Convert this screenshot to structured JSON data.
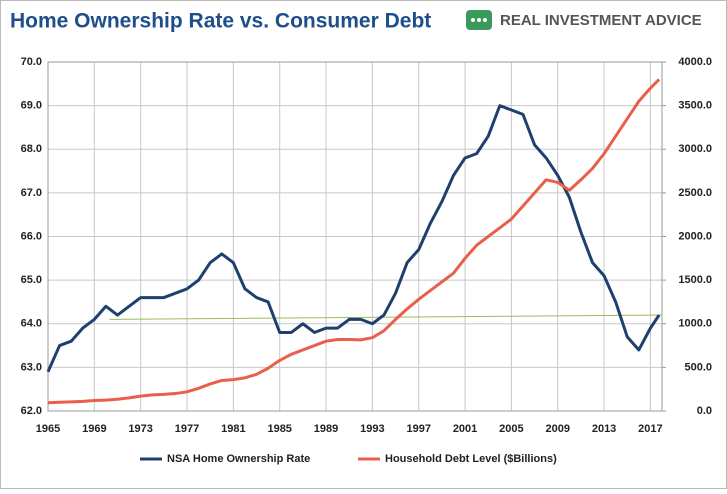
{
  "brand": "REAL INVESTMENT ADVICE",
  "chart_data": {
    "type": "line",
    "title": "Home Ownership Rate vs. Consumer Debt",
    "x": [
      1965,
      1966,
      1967,
      1968,
      1969,
      1970,
      1971,
      1972,
      1973,
      1974,
      1975,
      1976,
      1977,
      1978,
      1979,
      1980,
      1981,
      1982,
      1983,
      1984,
      1985,
      1986,
      1987,
      1988,
      1989,
      1990,
      1991,
      1992,
      1993,
      1994,
      1995,
      1996,
      1997,
      1998,
      1999,
      2000,
      2001,
      2002,
      2003,
      2004,
      2005,
      2006,
      2007,
      2008,
      2009,
      2010,
      2011,
      2012,
      2013,
      2014,
      2015,
      2016,
      2017,
      2017.75
    ],
    "series": [
      {
        "name": "NSA Home Ownership Rate",
        "color": "#1f3f6e",
        "axis": "y",
        "values": [
          62.9,
          63.5,
          63.6,
          63.9,
          64.1,
          64.4,
          64.2,
          64.4,
          64.6,
          64.6,
          64.6,
          64.7,
          64.8,
          65.0,
          65.4,
          65.6,
          65.4,
          64.8,
          64.6,
          64.5,
          63.8,
          63.8,
          64.0,
          63.8,
          63.9,
          63.9,
          64.1,
          64.1,
          64.0,
          64.2,
          64.7,
          65.4,
          65.7,
          66.3,
          66.8,
          67.4,
          67.8,
          67.9,
          68.3,
          69.0,
          68.9,
          68.8,
          68.1,
          67.8,
          67.4,
          66.9,
          66.1,
          65.4,
          65.1,
          64.5,
          63.7,
          63.4,
          63.9,
          64.2
        ]
      },
      {
        "name": "Household Debt Level ($Billions)",
        "color": "#e8604c",
        "axis": "y2",
        "values": [
          95,
          100,
          105,
          110,
          120,
          125,
          135,
          150,
          170,
          185,
          190,
          200,
          220,
          260,
          310,
          350,
          360,
          380,
          420,
          490,
          580,
          650,
          700,
          750,
          800,
          820,
          820,
          815,
          840,
          920,
          1050,
          1170,
          1280,
          1380,
          1480,
          1580,
          1750,
          1900,
          2000,
          2100,
          2200,
          2350,
          2500,
          2650,
          2620,
          2530,
          2650,
          2780,
          2950,
          3150,
          3350,
          3550,
          3700,
          3800
        ]
      }
    ],
    "reference_line": {
      "color": "#9bbb59",
      "x": [
        1970.3,
        2018
      ],
      "y": [
        64.1,
        64.2
      ]
    },
    "xlim": [
      1965,
      2018
    ],
    "xticks": [
      1965,
      1969,
      1973,
      1977,
      1981,
      1985,
      1989,
      1993,
      1997,
      2001,
      2005,
      2009,
      2013,
      2017
    ],
    "ylim": [
      62,
      70
    ],
    "yticks": [
      {
        "value": 62,
        "label": "62.0"
      },
      {
        "value": 63,
        "label": "63.0"
      },
      {
        "value": 64,
        "label": "64.0"
      },
      {
        "value": 65,
        "label": "65.0"
      },
      {
        "value": 66,
        "label": "66.0"
      },
      {
        "value": 67,
        "label": "67.0"
      },
      {
        "value": 68,
        "label": "68.0"
      },
      {
        "value": 69,
        "label": "69.0"
      },
      {
        "value": 70,
        "label": "70.0"
      }
    ],
    "y2lim": [
      0,
      4000
    ],
    "y2ticks": [
      {
        "value": 0,
        "label": "0.0"
      },
      {
        "value": 500,
        "label": "500.0"
      },
      {
        "value": 1000,
        "label": "1000.0"
      },
      {
        "value": 1500,
        "label": "1500.0"
      },
      {
        "value": 2000,
        "label": "2000.0"
      },
      {
        "value": 2500,
        "label": "2500.0"
      },
      {
        "value": 3000,
        "label": "3000.0"
      },
      {
        "value": 3500,
        "label": "3500.0"
      },
      {
        "value": 4000,
        "label": "4000.0"
      }
    ],
    "grid": true,
    "legend": "bottom"
  }
}
